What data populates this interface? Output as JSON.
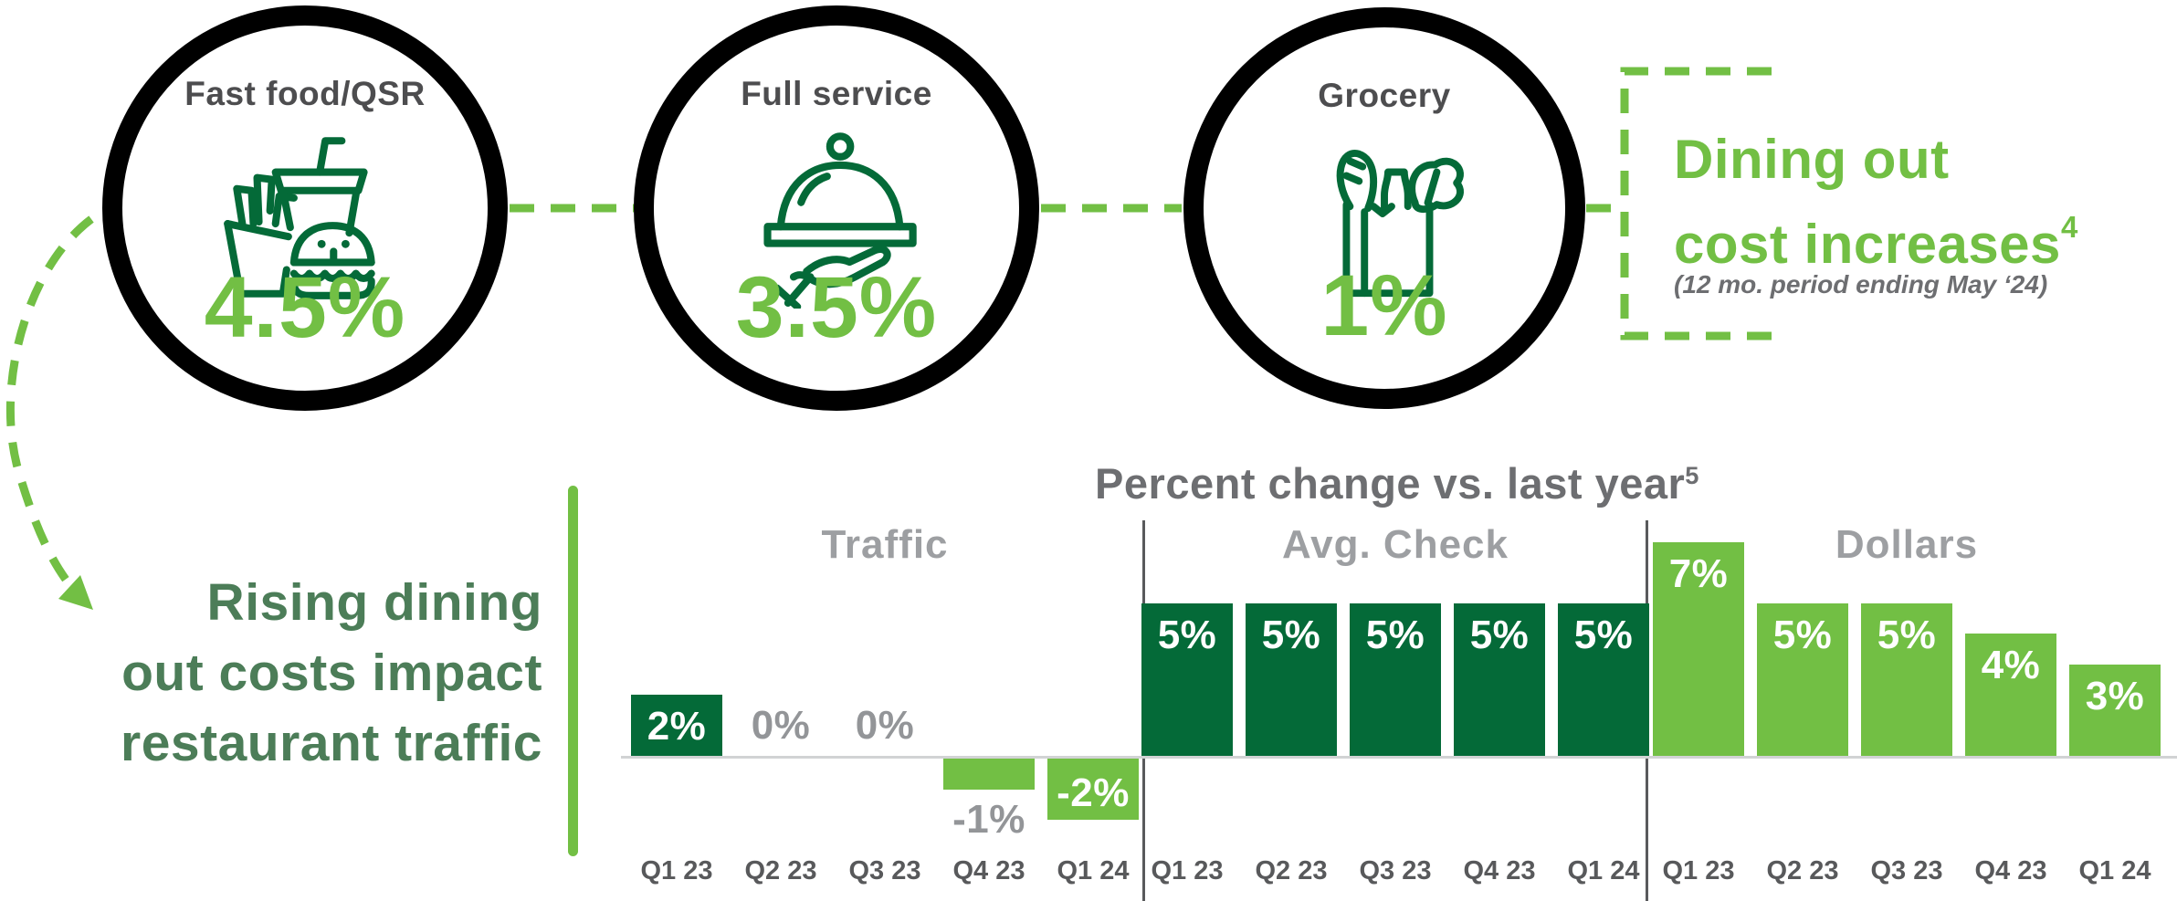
{
  "accent_colors": {
    "light_green": "#72bf44",
    "dark_green": "#046a38",
    "sage_green": "#4c7d58",
    "title_gray": "#6d6e71",
    "group_label_gray": "#9d9fa2",
    "axis_gray": "#58595b",
    "baseline_gray": "#d1d3d4",
    "circle_ring": "#000000"
  },
  "cost_circles": {
    "items": [
      {
        "label": "Fast food/QSR",
        "value": "4.5%",
        "icon": "fast-food-icon"
      },
      {
        "label": "Full service",
        "value": "3.5%",
        "icon": "cloche-icon"
      },
      {
        "label": "Grocery",
        "value": "1%",
        "icon": "grocery-bag-icon"
      }
    ],
    "callout": {
      "line1": "Dining out",
      "line2": "cost increases",
      "superscript": "4",
      "subtitle": "(12 mo. period ending May ‘24)"
    }
  },
  "headline": {
    "line1": "Rising dining",
    "line2": "out costs impact",
    "line3": "restaurant traffic"
  },
  "chart_data": {
    "type": "bar",
    "title": "Percent change vs. last year",
    "title_superscript": "5",
    "categories": [
      "Q1 23",
      "Q2 23",
      "Q3 23",
      "Q4 23",
      "Q1 24"
    ],
    "series": [
      {
        "name": "Traffic",
        "color": "#046a38",
        "negative_color": "#72bf44",
        "values": [
          2,
          0,
          0,
          -1,
          -2
        ],
        "labels": [
          "2%",
          "0%",
          "0%",
          "-1%",
          "-2%"
        ]
      },
      {
        "name": "Avg. Check",
        "color": "#046a38",
        "negative_color": "#72bf44",
        "values": [
          5,
          5,
          5,
          5,
          5
        ],
        "labels": [
          "5%",
          "5%",
          "5%",
          "5%",
          "5%"
        ]
      },
      {
        "name": "Dollars",
        "color": "#72bf44",
        "negative_color": "#72bf44",
        "values": [
          7,
          5,
          5,
          4,
          3
        ],
        "labels": [
          "7%",
          "5%",
          "5%",
          "4%",
          "3%"
        ]
      }
    ],
    "value_unit": "%",
    "ylim": [
      -2,
      7
    ],
    "baseline_value": 0,
    "grid": false,
    "legend": "none",
    "inside_label_color": "#ffffff",
    "outside_label_color": "#939598"
  }
}
